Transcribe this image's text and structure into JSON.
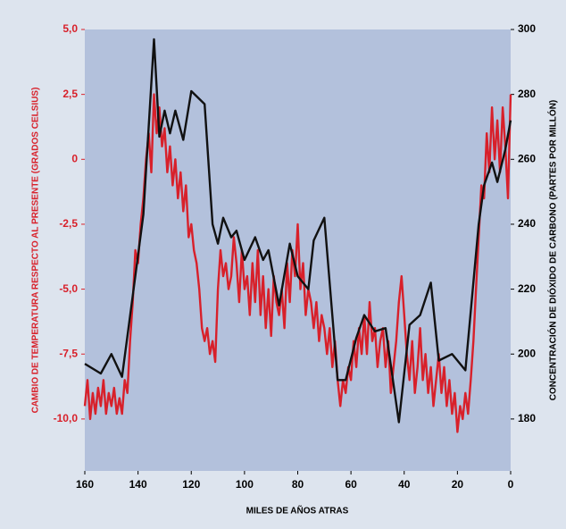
{
  "chart_data": {
    "type": "line",
    "xlabel": "MILES DE AÑOS ATRAS",
    "ylabel": "CAMBIO DE TEMPERATURA RESPECTO AL PRESENTE (GRADOS CELSIUS)",
    "y2label": "CONCENTRACIÓN DE DIÓXIDO DE CARBONO (PARTES POR MILLÓN)",
    "xlim": [
      160,
      0
    ],
    "xticks": [
      160,
      140,
      120,
      100,
      80,
      60,
      40,
      20,
      0
    ],
    "ylim": [
      -12,
      5
    ],
    "yticks": [
      {
        "value": 5,
        "label": "5,0"
      },
      {
        "value": 2.5,
        "label": "2,5"
      },
      0,
      {
        "value": -2.5,
        "label": "-2,5"
      },
      {
        "value": -5,
        "label": "-5,0"
      },
      {
        "value": -7.5,
        "label": "-7,5"
      },
      {
        "value": -10,
        "label": "-10,0"
      }
    ],
    "y2lim": [
      164,
      300
    ],
    "y2ticks": [
      300,
      280,
      260,
      240,
      220,
      200,
      180
    ],
    "series": [
      {
        "color": "#d8202a",
        "axis": "y",
        "x": [
          160,
          159,
          158,
          157,
          156,
          155,
          154,
          153,
          152,
          151,
          150,
          149,
          148,
          147,
          146,
          145,
          144,
          143,
          142,
          141,
          140,
          139,
          138,
          137,
          136,
          135,
          134,
          133,
          132,
          131,
          130,
          129,
          128,
          127,
          126,
          125,
          124,
          123,
          122,
          121,
          120,
          119,
          118,
          117,
          116,
          115,
          114,
          113,
          112,
          111,
          110,
          109,
          108,
          107,
          106,
          105,
          104,
          103,
          102,
          101,
          100,
          99,
          98,
          97,
          96,
          95,
          94,
          93,
          92,
          91,
          90,
          89,
          88,
          87,
          86,
          85,
          84,
          83,
          82,
          81,
          80,
          79,
          78,
          77,
          76,
          75,
          74,
          73,
          72,
          71,
          70,
          69,
          68,
          67,
          66,
          65,
          64,
          63,
          62,
          61,
          60,
          59,
          58,
          57,
          56,
          55,
          54,
          53,
          52,
          51,
          50,
          49,
          48,
          47,
          46,
          45,
          44,
          43,
          42,
          41,
          40,
          39,
          38,
          37,
          36,
          35,
          34,
          33,
          32,
          31,
          30,
          29,
          28,
          27,
          26,
          25,
          24,
          23,
          22,
          21,
          20,
          19,
          18,
          17,
          16,
          15,
          14,
          13,
          12,
          11,
          10,
          9,
          8,
          7,
          6,
          5,
          4,
          3,
          2,
          1,
          0
        ],
        "values": [
          -9.5,
          -8.5,
          -10,
          -9,
          -9.8,
          -8.8,
          -9.5,
          -8.5,
          -9.8,
          -9,
          -9.5,
          -8.8,
          -9.8,
          -9.2,
          -9.8,
          -8.5,
          -9,
          -7,
          -5.5,
          -3.5,
          -4,
          -2.5,
          -1.5,
          0,
          1,
          -0.5,
          2.5,
          1,
          2,
          0.5,
          1.2,
          -0.5,
          0.5,
          -1,
          0,
          -1.5,
          -0.5,
          -2,
          -1,
          -3,
          -2.5,
          -3.5,
          -4,
          -5,
          -6.5,
          -7,
          -6.5,
          -7.5,
          -7,
          -7.8,
          -5,
          -3.5,
          -4.5,
          -4,
          -5,
          -4.5,
          -3,
          -4,
          -5.5,
          -3.5,
          -5,
          -4.5,
          -6,
          -4,
          -5.5,
          -3.5,
          -6,
          -4.5,
          -6.5,
          -5,
          -6.8,
          -4.5,
          -5.5,
          -6,
          -5,
          -6.5,
          -4,
          -5.5,
          -3.5,
          -4.5,
          -2.5,
          -5,
          -4,
          -6,
          -5,
          -5.5,
          -6.5,
          -5.5,
          -7,
          -6,
          -6.5,
          -7.5,
          -6.5,
          -8,
          -7,
          -8.5,
          -9.5,
          -8.5,
          -9,
          -8,
          -8.5,
          -7,
          -8,
          -6.5,
          -7.5,
          -6,
          -7.5,
          -5.5,
          -7,
          -6.5,
          -8,
          -7,
          -6.5,
          -8,
          -7,
          -9,
          -8,
          -7,
          -5.5,
          -4.5,
          -6,
          -7.5,
          -8.5,
          -7,
          -9,
          -8,
          -6.5,
          -8.5,
          -7.5,
          -9,
          -8,
          -9.5,
          -8.5,
          -7.5,
          -9,
          -8,
          -9.5,
          -8.5,
          -9.8,
          -9,
          -10.5,
          -9.5,
          -10,
          -9,
          -9.8,
          -8.5,
          -7,
          -5,
          -3,
          -1,
          -1.5,
          1,
          -0.5,
          2,
          0,
          1.5,
          -0.5,
          2,
          0.5,
          -1.5,
          2.5
        ]
      },
      {
        "color": "#111111",
        "axis": "y2",
        "x": [
          160,
          154,
          150,
          146,
          142,
          138,
          134,
          132,
          130,
          128,
          126,
          123,
          120,
          115,
          112,
          110,
          108,
          105,
          103,
          100,
          96,
          93,
          91,
          87,
          83,
          80,
          76,
          74,
          70,
          65,
          62,
          58,
          55,
          51,
          47,
          42,
          38,
          34,
          30,
          27,
          22,
          17,
          12,
          10,
          7,
          5,
          2,
          0
        ],
        "values": [
          197,
          194,
          200,
          193,
          218,
          243,
          297,
          267,
          275,
          268,
          275,
          266,
          281,
          277,
          240,
          234,
          242,
          236,
          238,
          229,
          236,
          229,
          232,
          215,
          234,
          224,
          220,
          235,
          242,
          192,
          192,
          205,
          212,
          207,
          208,
          179,
          209,
          212,
          222,
          198,
          200,
          195,
          240,
          252,
          259,
          253,
          263,
          272
        ]
      }
    ]
  }
}
